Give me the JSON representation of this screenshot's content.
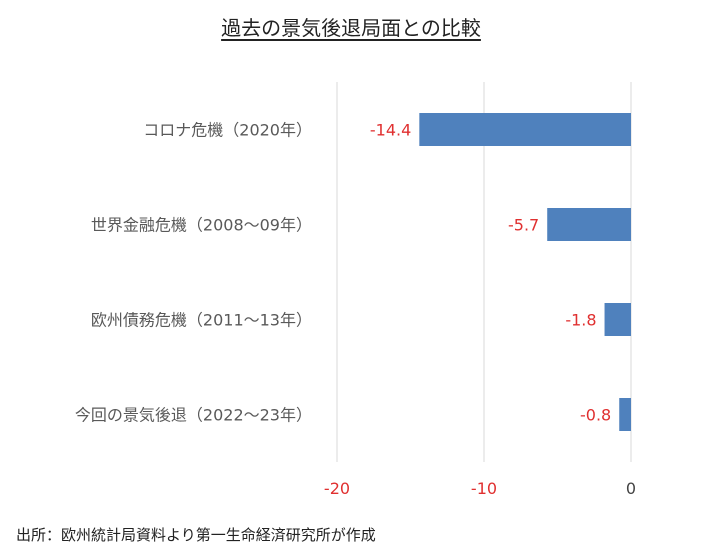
{
  "chart_data": {
    "type": "bar",
    "orientation": "horizontal",
    "title": "過去の景気後退局面との比較",
    "categories": [
      "コロナ危機（2020年）",
      "世界金融危機（2008〜09年）",
      "欧州債務危機（2011〜13年）",
      "今回の景気後退（2022〜23年）"
    ],
    "values": [
      -14.4,
      -5.7,
      -1.8,
      -0.8
    ],
    "value_labels": [
      "-14.4",
      "-5.7",
      "-1.8",
      "-0.8"
    ],
    "xlim": [
      -20,
      0
    ],
    "xticks": [
      -20,
      -10,
      0
    ],
    "xtick_labels": [
      "-20",
      "-10",
      "0"
    ],
    "grid": true,
    "bar_color": "#4f81bd",
    "label_color": "#e03030"
  },
  "source": "出所：欧州統計局資料より第一生命経済研究所が作成"
}
